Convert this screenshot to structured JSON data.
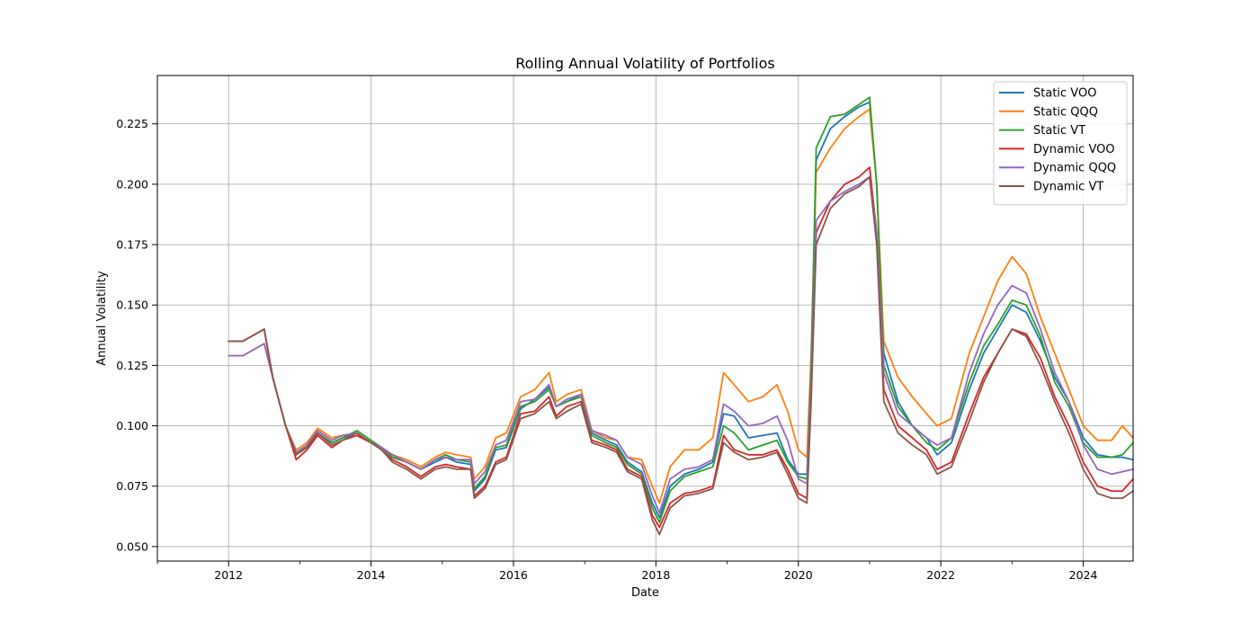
{
  "chart_data": {
    "type": "line",
    "title": "Rolling Annual Volatility of Portfolios",
    "xlabel": "Date",
    "ylabel": "Annual Volatility",
    "xlim": [
      2011.0,
      2024.7
    ],
    "ylim": [
      0.044,
      0.245
    ],
    "x_ticks": [
      2012,
      2014,
      2016,
      2018,
      2020,
      2022,
      2024
    ],
    "x_tick_labels": [
      "2012",
      "2014",
      "2016",
      "2018",
      "2020",
      "2022",
      "2024"
    ],
    "x_minor_ticks": [
      2011,
      2013,
      2015,
      2017,
      2019,
      2021,
      2023
    ],
    "y_ticks": [
      0.05,
      0.075,
      0.1,
      0.125,
      0.15,
      0.175,
      0.2,
      0.225
    ],
    "y_tick_labels": [
      "0.050",
      "0.075",
      "0.100",
      "0.125",
      "0.150",
      "0.175",
      "0.200",
      "0.225"
    ],
    "grid": true,
    "legend_position": "top-right",
    "series": [
      {
        "name": "Static VOO",
        "color": "#1f77b4",
        "x": [
          2012.0,
          2012.2,
          2012.5,
          2012.62,
          2012.8,
          2012.95,
          2013.1,
          2013.25,
          2013.45,
          2013.6,
          2013.8,
          2014.0,
          2014.15,
          2014.3,
          2014.5,
          2014.7,
          2014.9,
          2015.05,
          2015.2,
          2015.4,
          2015.45,
          2015.6,
          2015.75,
          2015.9,
          2016.1,
          2016.3,
          2016.5,
          2016.6,
          2016.75,
          2016.95,
          2017.1,
          2017.3,
          2017.45,
          2017.6,
          2017.8,
          2017.95,
          2018.05,
          2018.2,
          2018.4,
          2018.6,
          2018.8,
          2018.95,
          2019.1,
          2019.3,
          2019.5,
          2019.7,
          2019.85,
          2020.0,
          2020.12,
          2020.18,
          2020.25,
          2020.45,
          2020.65,
          2020.85,
          2021.0,
          2021.1,
          2021.2,
          2021.4,
          2021.6,
          2021.8,
          2021.95,
          2022.15,
          2022.4,
          2022.6,
          2022.8,
          2023.0,
          2023.2,
          2023.4,
          2023.6,
          2023.8,
          2024.0,
          2024.2,
          2024.4,
          2024.55,
          2024.7
        ],
        "values": [
          0.135,
          0.135,
          0.14,
          0.12,
          0.1,
          0.088,
          0.092,
          0.097,
          0.093,
          0.095,
          0.097,
          0.093,
          0.091,
          0.087,
          0.085,
          0.082,
          0.085,
          0.087,
          0.085,
          0.084,
          0.073,
          0.078,
          0.09,
          0.091,
          0.107,
          0.111,
          0.116,
          0.108,
          0.11,
          0.113,
          0.097,
          0.094,
          0.092,
          0.085,
          0.081,
          0.068,
          0.062,
          0.075,
          0.08,
          0.082,
          0.085,
          0.105,
          0.104,
          0.095,
          0.096,
          0.097,
          0.086,
          0.08,
          0.08,
          0.12,
          0.21,
          0.223,
          0.228,
          0.232,
          0.234,
          0.2,
          0.13,
          0.11,
          0.1,
          0.095,
          0.088,
          0.093,
          0.115,
          0.13,
          0.14,
          0.15,
          0.147,
          0.135,
          0.12,
          0.11,
          0.095,
          0.088,
          0.087,
          0.087,
          0.086
        ]
      },
      {
        "name": "Static QQQ",
        "color": "#ff7f0e",
        "x": [
          2012.0,
          2012.2,
          2012.5,
          2012.62,
          2012.8,
          2012.95,
          2013.1,
          2013.25,
          2013.45,
          2013.6,
          2013.8,
          2014.0,
          2014.15,
          2014.3,
          2014.5,
          2014.7,
          2014.9,
          2015.05,
          2015.2,
          2015.4,
          2015.45,
          2015.6,
          2015.75,
          2015.9,
          2016.1,
          2016.3,
          2016.5,
          2016.6,
          2016.75,
          2016.95,
          2017.1,
          2017.3,
          2017.45,
          2017.6,
          2017.8,
          2017.95,
          2018.05,
          2018.2,
          2018.4,
          2018.6,
          2018.8,
          2018.95,
          2019.1,
          2019.3,
          2019.5,
          2019.7,
          2019.85,
          2020.0,
          2020.12,
          2020.18,
          2020.25,
          2020.45,
          2020.65,
          2020.85,
          2021.0,
          2021.1,
          2021.2,
          2021.4,
          2021.6,
          2021.8,
          2021.95,
          2022.15,
          2022.4,
          2022.6,
          2022.8,
          2023.0,
          2023.2,
          2023.4,
          2023.6,
          2023.8,
          2024.0,
          2024.2,
          2024.4,
          2024.55,
          2024.7
        ],
        "values": [
          0.129,
          0.129,
          0.134,
          0.12,
          0.1,
          0.09,
          0.093,
          0.099,
          0.095,
          0.096,
          0.097,
          0.093,
          0.091,
          0.088,
          0.086,
          0.083,
          0.087,
          0.089,
          0.088,
          0.087,
          0.078,
          0.083,
          0.095,
          0.097,
          0.112,
          0.115,
          0.122,
          0.11,
          0.113,
          0.115,
          0.098,
          0.095,
          0.094,
          0.087,
          0.086,
          0.075,
          0.068,
          0.083,
          0.09,
          0.09,
          0.095,
          0.122,
          0.117,
          0.11,
          0.112,
          0.117,
          0.106,
          0.09,
          0.087,
          0.13,
          0.205,
          0.215,
          0.223,
          0.228,
          0.231,
          0.2,
          0.135,
          0.12,
          0.112,
          0.105,
          0.1,
          0.103,
          0.13,
          0.145,
          0.16,
          0.17,
          0.163,
          0.145,
          0.13,
          0.115,
          0.1,
          0.094,
          0.094,
          0.1,
          0.095
        ]
      },
      {
        "name": "Static VT",
        "color": "#2ca02c",
        "x": [
          2012.0,
          2012.2,
          2012.5,
          2012.62,
          2012.8,
          2012.95,
          2013.1,
          2013.25,
          2013.45,
          2013.6,
          2013.8,
          2014.0,
          2014.15,
          2014.3,
          2014.5,
          2014.7,
          2014.9,
          2015.05,
          2015.2,
          2015.4,
          2015.45,
          2015.6,
          2015.75,
          2015.9,
          2016.1,
          2016.3,
          2016.5,
          2016.6,
          2016.75,
          2016.95,
          2017.1,
          2017.3,
          2017.45,
          2017.6,
          2017.8,
          2017.95,
          2018.05,
          2018.2,
          2018.4,
          2018.6,
          2018.8,
          2018.95,
          2019.1,
          2019.3,
          2019.5,
          2019.7,
          2019.85,
          2020.0,
          2020.12,
          2020.18,
          2020.25,
          2020.45,
          2020.65,
          2020.85,
          2021.0,
          2021.1,
          2021.2,
          2021.4,
          2021.6,
          2021.8,
          2021.95,
          2022.15,
          2022.4,
          2022.6,
          2022.8,
          2023.0,
          2023.2,
          2023.4,
          2023.6,
          2023.8,
          2024.0,
          2024.2,
          2024.4,
          2024.55,
          2024.7
        ],
        "values": [
          0.135,
          0.135,
          0.14,
          0.12,
          0.1,
          0.088,
          0.092,
          0.097,
          0.093,
          0.095,
          0.098,
          0.094,
          0.091,
          0.087,
          0.085,
          0.082,
          0.086,
          0.088,
          0.086,
          0.085,
          0.074,
          0.079,
          0.091,
          0.092,
          0.108,
          0.11,
          0.115,
          0.108,
          0.11,
          0.112,
          0.096,
          0.093,
          0.091,
          0.084,
          0.08,
          0.066,
          0.06,
          0.073,
          0.079,
          0.081,
          0.083,
          0.1,
          0.097,
          0.09,
          0.092,
          0.094,
          0.085,
          0.079,
          0.078,
          0.125,
          0.215,
          0.228,
          0.229,
          0.233,
          0.236,
          0.2,
          0.125,
          0.108,
          0.1,
          0.093,
          0.09,
          0.095,
          0.118,
          0.133,
          0.142,
          0.152,
          0.15,
          0.137,
          0.118,
          0.108,
          0.093,
          0.087,
          0.087,
          0.088,
          0.093
        ]
      },
      {
        "name": "Dynamic VOO",
        "color": "#d62728",
        "x": [
          2012.0,
          2012.2,
          2012.5,
          2012.62,
          2012.8,
          2012.95,
          2013.1,
          2013.25,
          2013.45,
          2013.6,
          2013.8,
          2014.0,
          2014.15,
          2014.3,
          2014.5,
          2014.7,
          2014.9,
          2015.05,
          2015.2,
          2015.4,
          2015.45,
          2015.6,
          2015.75,
          2015.9,
          2016.1,
          2016.3,
          2016.5,
          2016.6,
          2016.75,
          2016.95,
          2017.1,
          2017.3,
          2017.45,
          2017.6,
          2017.8,
          2017.95,
          2018.05,
          2018.2,
          2018.4,
          2018.6,
          2018.8,
          2018.95,
          2019.1,
          2019.3,
          2019.5,
          2019.7,
          2019.85,
          2020.0,
          2020.12,
          2020.18,
          2020.25,
          2020.45,
          2020.65,
          2020.85,
          2021.0,
          2021.1,
          2021.2,
          2021.4,
          2021.6,
          2021.8,
          2021.95,
          2022.15,
          2022.4,
          2022.6,
          2022.8,
          2023.0,
          2023.2,
          2023.4,
          2023.6,
          2023.8,
          2024.0,
          2024.2,
          2024.4,
          2024.55,
          2024.7
        ],
        "values": [
          0.135,
          0.135,
          0.14,
          0.12,
          0.1,
          0.086,
          0.09,
          0.096,
          0.091,
          0.094,
          0.096,
          0.093,
          0.09,
          0.086,
          0.083,
          0.079,
          0.083,
          0.084,
          0.083,
          0.082,
          0.071,
          0.075,
          0.085,
          0.087,
          0.105,
          0.106,
          0.112,
          0.104,
          0.108,
          0.11,
          0.094,
          0.092,
          0.09,
          0.082,
          0.079,
          0.063,
          0.058,
          0.068,
          0.072,
          0.073,
          0.075,
          0.096,
          0.09,
          0.088,
          0.088,
          0.09,
          0.082,
          0.072,
          0.07,
          0.115,
          0.18,
          0.193,
          0.2,
          0.203,
          0.207,
          0.18,
          0.115,
          0.1,
          0.095,
          0.09,
          0.082,
          0.085,
          0.105,
          0.12,
          0.13,
          0.14,
          0.138,
          0.128,
          0.112,
          0.1,
          0.085,
          0.075,
          0.073,
          0.073,
          0.078
        ]
      },
      {
        "name": "Dynamic QQQ",
        "color": "#9467bd",
        "x": [
          2012.0,
          2012.2,
          2012.5,
          2012.62,
          2012.8,
          2012.95,
          2013.1,
          2013.25,
          2013.45,
          2013.6,
          2013.8,
          2014.0,
          2014.15,
          2014.3,
          2014.5,
          2014.7,
          2014.9,
          2015.05,
          2015.2,
          2015.4,
          2015.45,
          2015.6,
          2015.75,
          2015.9,
          2016.1,
          2016.3,
          2016.5,
          2016.6,
          2016.75,
          2016.95,
          2017.1,
          2017.3,
          2017.45,
          2017.6,
          2017.8,
          2017.95,
          2018.05,
          2018.2,
          2018.4,
          2018.6,
          2018.8,
          2018.95,
          2019.1,
          2019.3,
          2019.5,
          2019.7,
          2019.85,
          2020.0,
          2020.12,
          2020.18,
          2020.25,
          2020.45,
          2020.65,
          2020.85,
          2021.0,
          2021.1,
          2021.2,
          2021.4,
          2021.6,
          2021.8,
          2021.95,
          2022.15,
          2022.4,
          2022.6,
          2022.8,
          2023.0,
          2023.2,
          2023.4,
          2023.6,
          2023.8,
          2024.0,
          2024.2,
          2024.4,
          2024.55,
          2024.7
        ],
        "values": [
          0.129,
          0.129,
          0.134,
          0.12,
          0.1,
          0.089,
          0.092,
          0.098,
          0.094,
          0.096,
          0.097,
          0.093,
          0.091,
          0.088,
          0.085,
          0.082,
          0.086,
          0.087,
          0.086,
          0.086,
          0.076,
          0.081,
          0.092,
          0.094,
          0.11,
          0.111,
          0.117,
          0.108,
          0.111,
          0.113,
          0.098,
          0.096,
          0.094,
          0.087,
          0.084,
          0.071,
          0.064,
          0.078,
          0.082,
          0.083,
          0.086,
          0.109,
          0.106,
          0.1,
          0.101,
          0.104,
          0.094,
          0.078,
          0.076,
          0.118,
          0.185,
          0.193,
          0.197,
          0.2,
          0.203,
          0.18,
          0.122,
          0.105,
          0.1,
          0.095,
          0.092,
          0.095,
          0.122,
          0.138,
          0.15,
          0.158,
          0.155,
          0.14,
          0.122,
          0.11,
          0.092,
          0.082,
          0.08,
          0.081,
          0.082
        ]
      },
      {
        "name": "Dynamic VT",
        "color": "#8c564b",
        "x": [
          2012.0,
          2012.2,
          2012.5,
          2012.62,
          2012.8,
          2012.95,
          2013.1,
          2013.25,
          2013.45,
          2013.6,
          2013.8,
          2014.0,
          2014.15,
          2014.3,
          2014.5,
          2014.7,
          2014.9,
          2015.05,
          2015.2,
          2015.4,
          2015.45,
          2015.6,
          2015.75,
          2015.9,
          2016.1,
          2016.3,
          2016.5,
          2016.6,
          2016.75,
          2016.95,
          2017.1,
          2017.3,
          2017.45,
          2017.6,
          2017.8,
          2017.95,
          2018.05,
          2018.2,
          2018.4,
          2018.6,
          2018.8,
          2018.95,
          2019.1,
          2019.3,
          2019.5,
          2019.7,
          2019.85,
          2020.0,
          2020.12,
          2020.18,
          2020.25,
          2020.45,
          2020.65,
          2020.85,
          2021.0,
          2021.1,
          2021.2,
          2021.4,
          2021.6,
          2021.8,
          2021.95,
          2022.15,
          2022.4,
          2022.6,
          2022.8,
          2023.0,
          2023.2,
          2023.4,
          2023.6,
          2023.8,
          2024.0,
          2024.2,
          2024.4,
          2024.55,
          2024.7
        ],
        "values": [
          0.135,
          0.135,
          0.14,
          0.12,
          0.1,
          0.088,
          0.091,
          0.097,
          0.092,
          0.094,
          0.097,
          0.093,
          0.09,
          0.085,
          0.082,
          0.078,
          0.082,
          0.083,
          0.082,
          0.082,
          0.07,
          0.074,
          0.084,
          0.086,
          0.103,
          0.105,
          0.11,
          0.103,
          0.106,
          0.109,
          0.093,
          0.091,
          0.089,
          0.081,
          0.078,
          0.061,
          0.055,
          0.066,
          0.071,
          0.072,
          0.074,
          0.093,
          0.089,
          0.086,
          0.087,
          0.089,
          0.08,
          0.07,
          0.068,
          0.11,
          0.175,
          0.19,
          0.196,
          0.199,
          0.203,
          0.175,
          0.11,
          0.097,
          0.092,
          0.088,
          0.08,
          0.083,
          0.102,
          0.118,
          0.13,
          0.14,
          0.137,
          0.125,
          0.11,
          0.097,
          0.082,
          0.072,
          0.07,
          0.07,
          0.073
        ]
      }
    ]
  }
}
